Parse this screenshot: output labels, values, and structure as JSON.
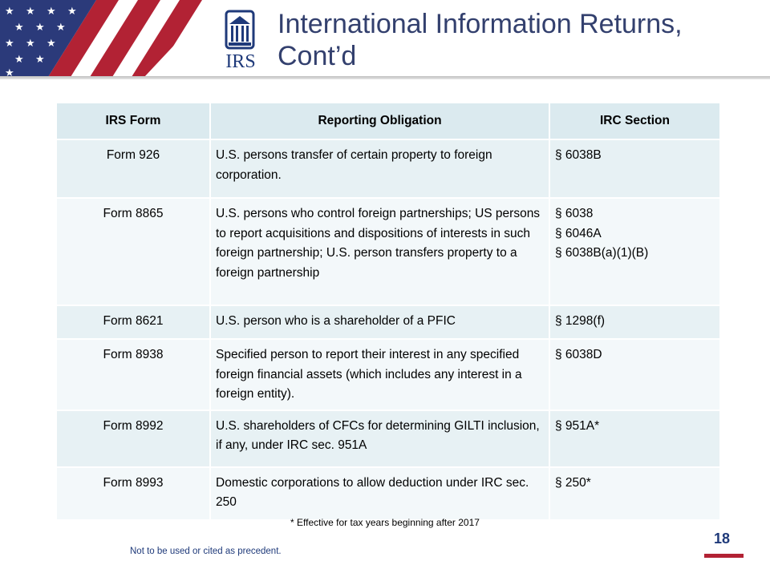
{
  "header": {
    "title_line1": "International Information Returns,",
    "title_line2": "Cont’d",
    "logo_text": "IRS",
    "colors": {
      "title": "#33406e",
      "flag_red": "#b22234",
      "flag_blue": "#2b3a7a"
    }
  },
  "table": {
    "columns": [
      "IRS Form",
      "Reporting Obligation",
      "IRC Section"
    ],
    "rows": [
      {
        "form": "Form 926",
        "obligation": "U.S. persons transfer of certain property to foreign corporation.",
        "sections": [
          "§ 6038B"
        ]
      },
      {
        "form": "Form 8865",
        "obligation": "U.S. persons who control foreign partnerships; US persons to report acquisitions and dispositions of interests in such foreign partnership; U.S. person transfers property to a foreign partnership",
        "sections": [
          "§ 6038",
          "§ 6046A",
          "§ 6038B(a)(1)(B)"
        ]
      },
      {
        "form": "Form 8621",
        "obligation": "U.S. person who is a shareholder of a PFIC",
        "sections": [
          "§ 1298(f)"
        ]
      },
      {
        "form": "Form 8938",
        "obligation": "Specified person to report their interest in any specified foreign financial assets  (which includes any interest in a foreign entity).",
        "sections": [
          "§ 6038D"
        ]
      },
      {
        "form": "Form 8992",
        "obligation": "U.S. shareholders of CFCs for determining GILTI inclusion, if any, under IRC sec. 951A",
        "sections": [
          "§ 951A*"
        ]
      },
      {
        "form": "Form 8993",
        "obligation": "Domestic corporations to allow deduction under IRC sec. 250",
        "sections": [
          "§ 250*"
        ]
      }
    ]
  },
  "footnote": "* Effective for tax years beginning after 2017",
  "disclaimer": "Not to be used or cited as precedent.",
  "page_number": "18"
}
